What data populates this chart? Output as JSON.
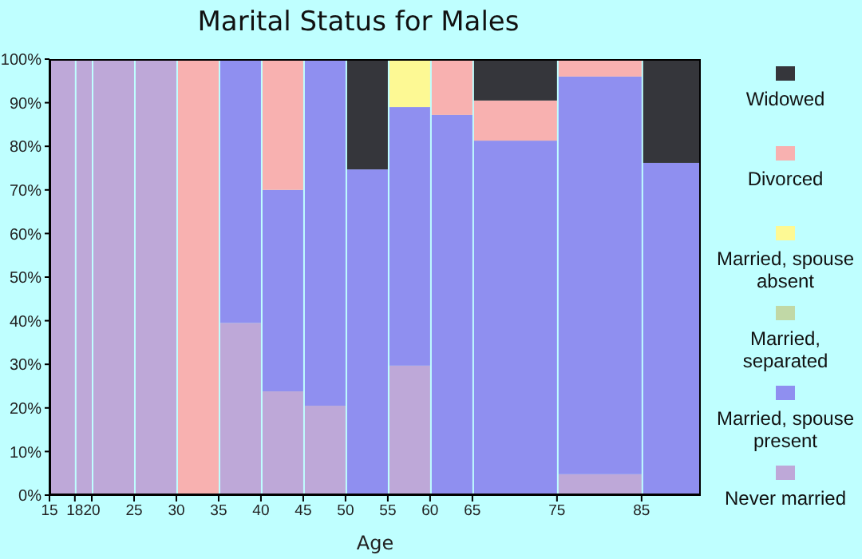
{
  "chart_data": {
    "type": "bar",
    "stacked": true,
    "title": "Marital Status for Males",
    "xlabel": "Age",
    "x": [
      16.5,
      19,
      22.5,
      27.5,
      32.5,
      37.5,
      42.5,
      47.5,
      52.5,
      57.5,
      62.5,
      70,
      80,
      88.5
    ],
    "xlim": [
      15,
      92
    ],
    "xticks": [
      15,
      18,
      20,
      25,
      30,
      35,
      40,
      45,
      50,
      55,
      60,
      65,
      75,
      85
    ],
    "ylim": [
      0,
      100
    ],
    "yticks": [
      {
        "value": 0,
        "label": "0%"
      },
      {
        "value": 10,
        "label": "10%"
      },
      {
        "value": 20,
        "label": "20%"
      },
      {
        "value": 30,
        "label": "30%"
      },
      {
        "value": 40,
        "label": "40%"
      },
      {
        "value": 50,
        "label": "50%"
      },
      {
        "value": 60,
        "label": "60%"
      },
      {
        "value": 70,
        "label": "70%"
      },
      {
        "value": 80,
        "label": "80%"
      },
      {
        "value": 90,
        "label": "90%"
      },
      {
        "value": 100,
        "label": "100%"
      }
    ],
    "grid": false,
    "legend": "right",
    "series": [
      {
        "name": "Never married",
        "color": "#bea8d8",
        "values": [
          100,
          100,
          100,
          100,
          0,
          39.5,
          23.8,
          20.5,
          0,
          29.7,
          0,
          0,
          4.8,
          0
        ]
      },
      {
        "name": "Married, spouse present",
        "color": "#8f8ff0",
        "values": [
          0,
          0,
          0,
          0,
          0,
          60.5,
          46.2,
          79.5,
          74.7,
          59.3,
          87.2,
          81.3,
          91.2,
          76.2
        ]
      },
      {
        "name": "Married, separated",
        "color": "#c1d8a6",
        "values": [
          0,
          0,
          0,
          0,
          0,
          0,
          0,
          0,
          0,
          0,
          0,
          0,
          0,
          0
        ]
      },
      {
        "name": "Married, spouse absent",
        "color": "#fdf994",
        "values": [
          0,
          0,
          0,
          0,
          0,
          0,
          0,
          0,
          0,
          11,
          0,
          0,
          0,
          0
        ]
      },
      {
        "name": "Divorced",
        "color": "#f8b1b0",
        "values": [
          0,
          0,
          0,
          0,
          100,
          0,
          30,
          0,
          0,
          0,
          12.8,
          9.2,
          4,
          0
        ]
      },
      {
        "name": "Widowed",
        "color": "#35363b",
        "values": [
          0,
          0,
          0,
          0,
          0,
          0,
          0,
          0,
          25.3,
          0,
          0,
          9.5,
          0,
          23.8
        ]
      }
    ]
  }
}
